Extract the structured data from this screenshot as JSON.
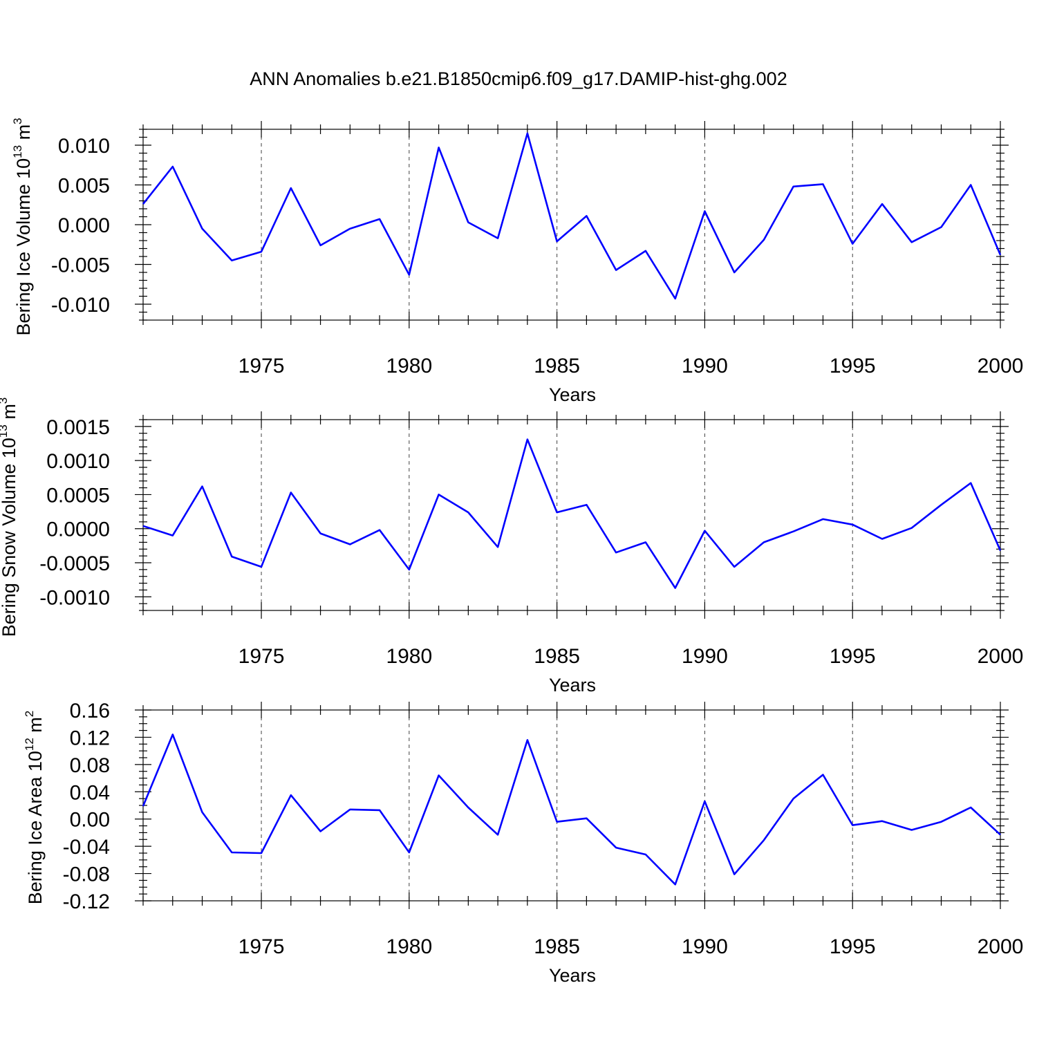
{
  "title": "ANN Anomalies b.e21.B1850cmip6.f09_g17.DAMIP-hist-ghg.002",
  "colors": {
    "series": "#0000ff",
    "axes": "#000000",
    "grid": "#555555"
  },
  "chart_data": [
    {
      "type": "line",
      "ylabel": {
        "text": "Bering Ice Volume 10",
        "exp": "13",
        "unit": " m",
        "unit_exp": "3"
      },
      "xlabel": "Years",
      "xlim": [
        1971,
        2000
      ],
      "ylim": [
        -0.012,
        0.012
      ],
      "grid": "vertical dashed at major x ticks",
      "x_ticks": [
        1975,
        1980,
        1985,
        1990,
        1995,
        2000
      ],
      "x_tick_labels": [
        "1975",
        "1980",
        "1985",
        "1990",
        "1995",
        "2000"
      ],
      "y_ticks": [
        -0.01,
        -0.005,
        0.0,
        0.005,
        0.01
      ],
      "y_tick_labels": [
        "-0.010",
        "-0.005",
        "0.000",
        "0.005",
        "0.010"
      ],
      "y_minor_step": 0.001,
      "x": [
        1971,
        1972,
        1973,
        1974,
        1975,
        1976,
        1977,
        1978,
        1979,
        1980,
        1981,
        1982,
        1983,
        1984,
        1985,
        1986,
        1987,
        1988,
        1989,
        1990,
        1991,
        1992,
        1993,
        1994,
        1995,
        1996,
        1997,
        1998,
        1999,
        2000
      ],
      "values": [
        0.0026,
        0.0073,
        -0.0005,
        -0.0045,
        -0.0034,
        0.0046,
        -0.0026,
        -0.0005,
        0.0007,
        -0.0063,
        0.0097,
        0.0003,
        -0.0017,
        0.0115,
        -0.0021,
        0.0011,
        -0.0057,
        -0.0033,
        -0.0093,
        0.0017,
        -0.006,
        -0.0019,
        0.0048,
        0.0051,
        -0.0024,
        0.0026,
        -0.0022,
        -0.0003,
        0.005,
        -0.0038
      ]
    },
    {
      "type": "line",
      "ylabel": {
        "text": "Bering Snow Volume 10",
        "exp": "13",
        "unit": " m",
        "unit_exp": "3"
      },
      "xlabel": "Years",
      "xlim": [
        1971,
        2000
      ],
      "ylim": [
        -0.0012,
        0.0016
      ],
      "grid": "vertical dashed at major x ticks",
      "x_ticks": [
        1975,
        1980,
        1985,
        1990,
        1995,
        2000
      ],
      "x_tick_labels": [
        "1975",
        "1980",
        "1985",
        "1990",
        "1995",
        "2000"
      ],
      "y_ticks": [
        -0.001,
        -0.0005,
        0.0,
        0.0005,
        0.001,
        0.0015
      ],
      "y_tick_labels": [
        "-0.0010",
        "-0.0005",
        "0.0000",
        "0.0005",
        "0.0010",
        "0.0015"
      ],
      "y_minor_step": 0.0001,
      "x": [
        1971,
        1972,
        1973,
        1974,
        1975,
        1976,
        1977,
        1978,
        1979,
        1980,
        1981,
        1982,
        1983,
        1984,
        1985,
        1986,
        1987,
        1988,
        1989,
        1990,
        1991,
        1992,
        1993,
        1994,
        1995,
        1996,
        1997,
        1998,
        1999,
        2000
      ],
      "values": [
        4e-05,
        -0.0001,
        0.00062,
        -0.00041,
        -0.00056,
        0.00053,
        -7e-05,
        -0.00023,
        -2e-05,
        -0.0006,
        0.0005,
        0.00024,
        -0.00027,
        0.00131,
        0.00024,
        0.00035,
        -0.00035,
        -0.0002,
        -0.00087,
        -3e-05,
        -0.00056,
        -0.0002,
        -4e-05,
        0.00014,
        6e-05,
        -0.00015,
        1e-05,
        0.00035,
        0.00067,
        -0.00032
      ]
    },
    {
      "type": "line",
      "ylabel": {
        "text": "Bering Ice Area 10",
        "exp": "12",
        "unit": " m",
        "unit_exp": "2"
      },
      "xlabel": "Years",
      "xlim": [
        1971,
        2000
      ],
      "ylim": [
        -0.12,
        0.16
      ],
      "grid": "vertical dashed at major x ticks",
      "x_ticks": [
        1975,
        1980,
        1985,
        1990,
        1995,
        2000
      ],
      "x_tick_labels": [
        "1975",
        "1980",
        "1985",
        "1990",
        "1995",
        "2000"
      ],
      "y_ticks": [
        -0.12,
        -0.08,
        -0.04,
        0.0,
        0.04,
        0.08,
        0.12,
        0.16
      ],
      "y_tick_labels": [
        "-0.12",
        "-0.08",
        "-0.04",
        "0.00",
        "0.04",
        "0.08",
        "0.12",
        "0.16"
      ],
      "y_minor_step": 0.01,
      "x": [
        1971,
        1972,
        1973,
        1974,
        1975,
        1976,
        1977,
        1978,
        1979,
        1980,
        1981,
        1982,
        1983,
        1984,
        1985,
        1986,
        1987,
        1988,
        1989,
        1990,
        1991,
        1992,
        1993,
        1994,
        1995,
        1996,
        1997,
        1998,
        1999,
        2000
      ],
      "values": [
        0.019,
        0.124,
        0.01,
        -0.049,
        -0.05,
        0.035,
        -0.018,
        0.014,
        0.013,
        -0.049,
        0.064,
        0.017,
        -0.023,
        0.116,
        -0.004,
        0.001,
        -0.042,
        -0.052,
        -0.096,
        0.026,
        -0.081,
        -0.031,
        0.03,
        0.065,
        -0.009,
        -0.003,
        -0.016,
        -0.004,
        0.017,
        -0.023
      ]
    }
  ]
}
